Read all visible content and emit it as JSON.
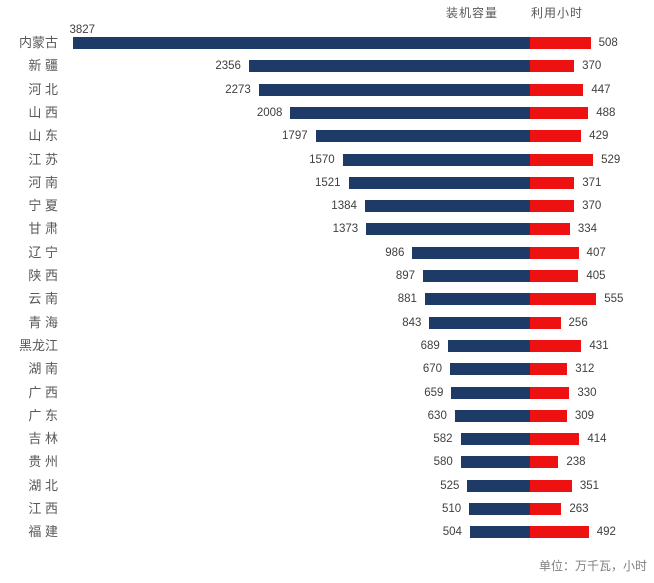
{
  "legend": {
    "capacity_label": "装机容量",
    "hours_label": "利用小时"
  },
  "footer": {
    "unit_note": "单位：万千瓦，小时"
  },
  "colors": {
    "capacity_bar": "#1E3A66",
    "hours_bar": "#EE1111",
    "category_text": "#595959",
    "value_text": "#3F3F3F"
  },
  "chart_data": {
    "type": "bar",
    "orientation": "bidirectional-horizontal",
    "title": "",
    "xlabel": "",
    "ylabel": "",
    "unit_note": "单位：万千瓦，小时",
    "legend_position": "top-right",
    "value_axis_hidden": true,
    "grid": false,
    "categories": [
      "内蒙古",
      "新 疆",
      "河 北",
      "山 西",
      "山 东",
      "江 苏",
      "河 南",
      "宁 夏",
      "甘 肃",
      "辽 宁",
      "陕 西",
      "云 南",
      "青 海",
      "黑龙江",
      "湖 南",
      "广 西",
      "广 东",
      "吉 林",
      "贵 州",
      "湖 北",
      "江 西",
      "福 建"
    ],
    "series": [
      {
        "name": "装机容量",
        "direction": "left",
        "color": "#1E3A66",
        "values": [
          3827,
          2356,
          2273,
          2008,
          1797,
          1570,
          1521,
          1384,
          1373,
          986,
          897,
          881,
          843,
          689,
          670,
          659,
          630,
          582,
          580,
          525,
          510,
          504
        ]
      },
      {
        "name": "利用小时",
        "direction": "right",
        "color": "#EE1111",
        "values": [
          508,
          370,
          447,
          488,
          429,
          529,
          371,
          370,
          334,
          407,
          405,
          555,
          256,
          431,
          312,
          330,
          309,
          414,
          238,
          351,
          263,
          492
        ]
      }
    ]
  }
}
